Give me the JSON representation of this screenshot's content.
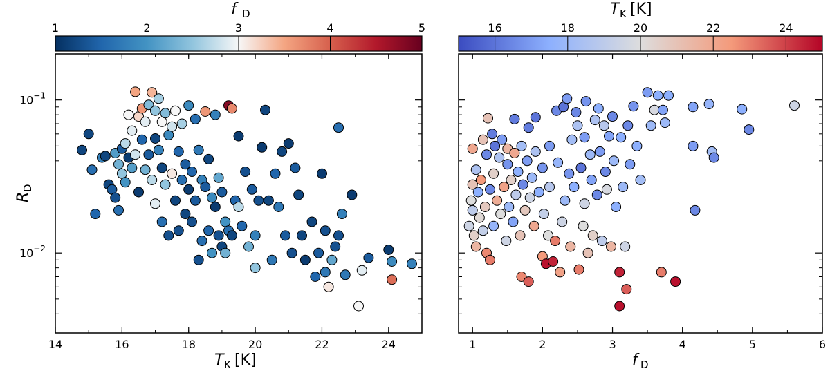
{
  "chart_data": [
    {
      "type": "scatter",
      "xlabel": "T_K [K]",
      "ylabel": "R_D",
      "xlim": [
        14,
        25
      ],
      "ylim": [
        0.003,
        0.2
      ],
      "yscale": "log",
      "x_ticks": [
        "14",
        "16",
        "18",
        "20",
        "22",
        "24"
      ],
      "y_ticks": [
        "10^-2",
        "10^-1"
      ],
      "color_by": "f_D",
      "colorbar": {
        "label": "f_D",
        "range": [
          1,
          5
        ],
        "ticks": [
          "1",
          "2",
          "3",
          "4",
          "5"
        ],
        "colormap": "RdBu_r",
        "placement": "top"
      },
      "points": [
        [
          14.8,
          0.047,
          1.2
        ],
        [
          15.0,
          0.06,
          1.2
        ],
        [
          15.1,
          0.035,
          1.6
        ],
        [
          15.2,
          0.018,
          1.5
        ],
        [
          15.4,
          0.042,
          1.8
        ],
        [
          15.5,
          0.043,
          1.2
        ],
        [
          15.6,
          0.028,
          1.2
        ],
        [
          15.7,
          0.026,
          1.4
        ],
        [
          15.8,
          0.045,
          2.1
        ],
        [
          15.8,
          0.023,
          1.3
        ],
        [
          15.9,
          0.038,
          2.3
        ],
        [
          15.9,
          0.019,
          1.6
        ],
        [
          16.0,
          0.033,
          2.5
        ],
        [
          16.0,
          0.048,
          1.4
        ],
        [
          16.1,
          0.052,
          2.7
        ],
        [
          16.1,
          0.029,
          2.0
        ],
        [
          16.2,
          0.08,
          3.0
        ],
        [
          16.2,
          0.042,
          1.1
        ],
        [
          16.3,
          0.063,
          2.9
        ],
        [
          16.3,
          0.036,
          2.1
        ],
        [
          16.4,
          0.113,
          3.5
        ],
        [
          16.4,
          0.044,
          2.8
        ],
        [
          16.5,
          0.078,
          3.2
        ],
        [
          16.5,
          0.025,
          1.1
        ],
        [
          16.6,
          0.088,
          3.6
        ],
        [
          16.6,
          0.055,
          1.5
        ],
        [
          16.7,
          0.072,
          2.9
        ],
        [
          16.7,
          0.035,
          2.3
        ],
        [
          16.8,
          0.093,
          2.4
        ],
        [
          16.8,
          0.044,
          1.4
        ],
        [
          16.9,
          0.112,
          3.4
        ],
        [
          16.9,
          0.03,
          2.7
        ],
        [
          17.0,
          0.085,
          2.5
        ],
        [
          17.0,
          0.056,
          1.2
        ],
        [
          17.0,
          0.021,
          2.9
        ],
        [
          17.1,
          0.102,
          2.6
        ],
        [
          17.1,
          0.047,
          1.8
        ],
        [
          17.2,
          0.072,
          3.0
        ],
        [
          17.2,
          0.036,
          1.2
        ],
        [
          17.2,
          0.016,
          1.6
        ],
        [
          17.3,
          0.082,
          2.4
        ],
        [
          17.3,
          0.028,
          2.5
        ],
        [
          17.4,
          0.059,
          1.9
        ],
        [
          17.4,
          0.013,
          1.3
        ],
        [
          17.5,
          0.067,
          2.8
        ],
        [
          17.5,
          0.033,
          3.1
        ],
        [
          17.6,
          0.085,
          3.0
        ],
        [
          17.6,
          0.022,
          1.2
        ],
        [
          17.7,
          0.046,
          1.5
        ],
        [
          17.7,
          0.014,
          1.3
        ],
        [
          17.8,
          0.03,
          1.6
        ],
        [
          17.8,
          0.07,
          2.6
        ],
        [
          17.9,
          0.038,
          1.4
        ],
        [
          17.9,
          0.018,
          1.2
        ],
        [
          18.0,
          0.092,
          1.9
        ],
        [
          18.0,
          0.026,
          1.1
        ],
        [
          18.1,
          0.034,
          1.5
        ],
        [
          18.1,
          0.016,
          1.3
        ],
        [
          18.2,
          0.075,
          1.6
        ],
        [
          18.2,
          0.022,
          1.4
        ],
        [
          18.3,
          0.047,
          1.7
        ],
        [
          18.3,
          0.009,
          1.3
        ],
        [
          18.4,
          0.03,
          1.8
        ],
        [
          18.4,
          0.012,
          1.6
        ],
        [
          18.5,
          0.084,
          3.6
        ],
        [
          18.5,
          0.027,
          1.4
        ],
        [
          18.6,
          0.041,
          1.2
        ],
        [
          18.6,
          0.014,
          1.5
        ],
        [
          18.7,
          0.023,
          1.9
        ],
        [
          18.7,
          0.01,
          2.0
        ],
        [
          18.8,
          0.08,
          1.8
        ],
        [
          18.8,
          0.02,
          1.1
        ],
        [
          18.9,
          0.031,
          2.2
        ],
        [
          18.9,
          0.013,
          1.3
        ],
        [
          19.0,
          0.011,
          1.2
        ],
        [
          19.0,
          0.025,
          1.4
        ],
        [
          19.1,
          0.016,
          2.0
        ],
        [
          19.1,
          0.01,
          2.3
        ],
        [
          19.2,
          0.092,
          4.8
        ],
        [
          19.2,
          0.014,
          1.6
        ],
        [
          19.3,
          0.088,
          3.7
        ],
        [
          19.3,
          0.013,
          1.2
        ],
        [
          19.4,
          0.022,
          1.5
        ],
        [
          19.5,
          0.058,
          1.1
        ],
        [
          19.5,
          0.02,
          2.7
        ],
        [
          19.6,
          0.015,
          1.5
        ],
        [
          19.7,
          0.034,
          1.3
        ],
        [
          19.8,
          0.011,
          2.3
        ],
        [
          19.9,
          0.026,
          1.4
        ],
        [
          20.0,
          0.013,
          1.8
        ],
        [
          20.0,
          0.008,
          2.5
        ],
        [
          20.1,
          0.022,
          1.3
        ],
        [
          20.2,
          0.049,
          1.1
        ],
        [
          20.3,
          0.086,
          1.2
        ],
        [
          20.4,
          0.022,
          1.2
        ],
        [
          20.5,
          0.009,
          1.7
        ],
        [
          20.6,
          0.033,
          1.5
        ],
        [
          20.7,
          0.02,
          1.7
        ],
        [
          20.8,
          0.046,
          1.2
        ],
        [
          20.9,
          0.013,
          1.4
        ],
        [
          21.0,
          0.052,
          1.1
        ],
        [
          21.1,
          0.01,
          1.3
        ],
        [
          21.2,
          0.036,
          1.4
        ],
        [
          21.3,
          0.024,
          1.2
        ],
        [
          21.4,
          0.013,
          1.2
        ],
        [
          21.5,
          0.009,
          1.1
        ],
        [
          21.7,
          0.016,
          1.2
        ],
        [
          21.8,
          0.007,
          1.5
        ],
        [
          21.9,
          0.01,
          1.4
        ],
        [
          22.0,
          0.033,
          1.1
        ],
        [
          22.1,
          0.014,
          1.3
        ],
        [
          22.1,
          0.0075,
          1.7
        ],
        [
          22.2,
          0.006,
          3.1
        ],
        [
          22.3,
          0.009,
          2.2
        ],
        [
          22.4,
          0.011,
          1.3
        ],
        [
          22.5,
          0.066,
          1.6
        ],
        [
          22.5,
          0.013,
          1.3
        ],
        [
          22.6,
          0.018,
          1.8
        ],
        [
          22.7,
          0.0072,
          1.7
        ],
        [
          22.9,
          0.024,
          1.1
        ],
        [
          23.1,
          0.0045,
          3.0
        ],
        [
          23.2,
          0.0077,
          2.9
        ],
        [
          23.4,
          0.0093,
          1.4
        ],
        [
          24.0,
          0.0105,
          1.1
        ],
        [
          24.1,
          0.0088,
          1.9
        ],
        [
          24.1,
          0.0067,
          3.9
        ],
        [
          24.7,
          0.0085,
          1.8
        ]
      ]
    },
    {
      "type": "scatter",
      "xlabel": "f_D",
      "ylabel": "",
      "xlim": [
        0.8,
        6
      ],
      "ylim": [
        0.003,
        0.2
      ],
      "yscale": "log",
      "x_ticks": [
        "1",
        "2",
        "3",
        "4",
        "5",
        "6"
      ],
      "y_ticks": [
        "10^-2",
        "10^-1"
      ],
      "color_by": "T_K [K]",
      "colorbar": {
        "label": "T_K [K]",
        "range": [
          15,
          25
        ],
        "ticks": [
          "16",
          "18",
          "20",
          "22",
          "24"
        ],
        "colormap": "coolwarm",
        "placement": "top"
      },
      "points": [
        [
          0.95,
          0.015,
          19.5
        ],
        [
          0.98,
          0.022,
          20.0
        ],
        [
          1.0,
          0.028,
          21.0
        ],
        [
          1.0,
          0.048,
          22.0
        ],
        [
          1.0,
          0.019,
          19.0
        ],
        [
          1.02,
          0.013,
          20.5
        ],
        [
          1.05,
          0.035,
          18.5
        ],
        [
          1.05,
          0.011,
          21.5
        ],
        [
          1.08,
          0.025,
          17.5
        ],
        [
          1.1,
          0.017,
          20.2
        ],
        [
          1.12,
          0.03,
          22.5
        ],
        [
          1.15,
          0.055,
          21.0
        ],
        [
          1.15,
          0.014,
          19.2
        ],
        [
          1.18,
          0.02,
          20.8
        ],
        [
          1.2,
          0.044,
          16.5
        ],
        [
          1.2,
          0.01,
          22.8
        ],
        [
          1.22,
          0.076,
          21.0
        ],
        [
          1.25,
          0.026,
          16.5
        ],
        [
          1.25,
          0.009,
          23.0
        ],
        [
          1.28,
          0.06,
          16.2
        ],
        [
          1.3,
          0.033,
          20.5
        ],
        [
          1.3,
          0.015,
          17.8
        ],
        [
          1.32,
          0.05,
          16.0
        ],
        [
          1.35,
          0.022,
          21.8
        ],
        [
          1.38,
          0.042,
          18.5
        ],
        [
          1.4,
          0.018,
          20.0
        ],
        [
          1.42,
          0.055,
          17.0
        ],
        [
          1.45,
          0.027,
          22.2
        ],
        [
          1.48,
          0.012,
          19.5
        ],
        [
          1.5,
          0.038,
          16.8
        ],
        [
          1.5,
          0.048,
          21.5
        ],
        [
          1.52,
          0.02,
          18.0
        ],
        [
          1.55,
          0.03,
          20.5
        ],
        [
          1.58,
          0.016,
          17.2
        ],
        [
          1.6,
          0.075,
          16.2
        ],
        [
          1.6,
          0.045,
          22.0
        ],
        [
          1.62,
          0.024,
          19.0
        ],
        [
          1.65,
          0.034,
          17.5
        ],
        [
          1.68,
          0.013,
          21.0
        ],
        [
          1.7,
          0.05,
          18.2
        ],
        [
          1.7,
          0.007,
          22.8
        ],
        [
          1.72,
          0.028,
          16.5
        ],
        [
          1.75,
          0.019,
          20.8
        ],
        [
          1.78,
          0.04,
          17.0
        ],
        [
          1.8,
          0.066,
          16.2
        ],
        [
          1.8,
          0.0065,
          23.5
        ],
        [
          1.82,
          0.023,
          19.5
        ],
        [
          1.85,
          0.031,
          18.0
        ],
        [
          1.88,
          0.015,
          22.0
        ],
        [
          1.9,
          0.077,
          16.0
        ],
        [
          1.9,
          0.046,
          18.5
        ],
        [
          1.95,
          0.025,
          17.5
        ],
        [
          2.0,
          0.036,
          16.8
        ],
        [
          2.0,
          0.0095,
          22.5
        ],
        [
          2.02,
          0.018,
          19.2
        ],
        [
          2.05,
          0.0085,
          24.8
        ],
        [
          2.08,
          0.013,
          20.0
        ],
        [
          2.1,
          0.05,
          17.0
        ],
        [
          2.1,
          0.027,
          18.8
        ],
        [
          2.15,
          0.0088,
          24.5
        ],
        [
          2.18,
          0.012,
          23.0
        ],
        [
          2.2,
          0.085,
          16.5
        ],
        [
          2.22,
          0.039,
          17.8
        ],
        [
          2.25,
          0.0075,
          22.2
        ],
        [
          2.28,
          0.016,
          19.5
        ],
        [
          2.3,
          0.09,
          16.0
        ],
        [
          2.32,
          0.022,
          18.0
        ],
        [
          2.35,
          0.102,
          17.0
        ],
        [
          2.38,
          0.033,
          16.8
        ],
        [
          2.4,
          0.011,
          21.5
        ],
        [
          2.42,
          0.055,
          18.2
        ],
        [
          2.45,
          0.027,
          17.5
        ],
        [
          2.48,
          0.083,
          16.5
        ],
        [
          2.5,
          0.068,
          18.5
        ],
        [
          2.52,
          0.0078,
          23.0
        ],
        [
          2.55,
          0.036,
          16.0
        ],
        [
          2.58,
          0.015,
          20.0
        ],
        [
          2.6,
          0.057,
          17.0
        ],
        [
          2.6,
          0.021,
          19.5
        ],
        [
          2.62,
          0.098,
          16.8
        ],
        [
          2.65,
          0.01,
          21.0
        ],
        [
          2.68,
          0.044,
          18.0
        ],
        [
          2.7,
          0.03,
          17.2
        ],
        [
          2.72,
          0.013,
          20.5
        ],
        [
          2.75,
          0.074,
          18.5
        ],
        [
          2.78,
          0.024,
          16.5
        ],
        [
          2.8,
          0.088,
          17.5
        ],
        [
          2.82,
          0.046,
          17.0
        ],
        [
          2.85,
          0.012,
          19.0
        ],
        [
          2.88,
          0.068,
          18.8
        ],
        [
          2.9,
          0.034,
          16.5
        ],
        [
          2.92,
          0.026,
          19.8
        ],
        [
          2.95,
          0.058,
          17.2
        ],
        [
          2.98,
          0.011,
          21.5
        ],
        [
          3.0,
          0.078,
          16.5
        ],
        [
          3.02,
          0.04,
          18.0
        ],
        [
          3.05,
          0.02,
          17.5
        ],
        [
          3.1,
          0.0075,
          24.5
        ],
        [
          3.1,
          0.0045,
          24.8
        ],
        [
          3.12,
          0.057,
          17.5
        ],
        [
          3.15,
          0.027,
          18.0
        ],
        [
          3.18,
          0.011,
          19.5
        ],
        [
          3.2,
          0.0058,
          23.5
        ],
        [
          3.22,
          0.068,
          16.5
        ],
        [
          3.25,
          0.038,
          17.0
        ],
        [
          3.3,
          0.091,
          16.8
        ],
        [
          3.35,
          0.05,
          17.5
        ],
        [
          3.4,
          0.03,
          18.2
        ],
        [
          3.5,
          0.112,
          17.0
        ],
        [
          3.55,
          0.068,
          18.0
        ],
        [
          3.6,
          0.086,
          19.8
        ],
        [
          3.65,
          0.107,
          17.5
        ],
        [
          3.7,
          0.0075,
          23.0
        ],
        [
          3.72,
          0.086,
          17.2
        ],
        [
          3.75,
          0.071,
          18.0
        ],
        [
          3.8,
          0.107,
          17.5
        ],
        [
          3.9,
          0.0065,
          24.8
        ],
        [
          4.15,
          0.09,
          17.2
        ],
        [
          4.15,
          0.05,
          17.0
        ],
        [
          4.18,
          0.019,
          16.5
        ],
        [
          4.38,
          0.094,
          17.8
        ],
        [
          4.42,
          0.046,
          18.2
        ],
        [
          4.45,
          0.042,
          16.5
        ],
        [
          4.85,
          0.087,
          17.5
        ],
        [
          4.95,
          0.064,
          16.5
        ],
        [
          5.6,
          0.092,
          19.5
        ]
      ]
    }
  ]
}
